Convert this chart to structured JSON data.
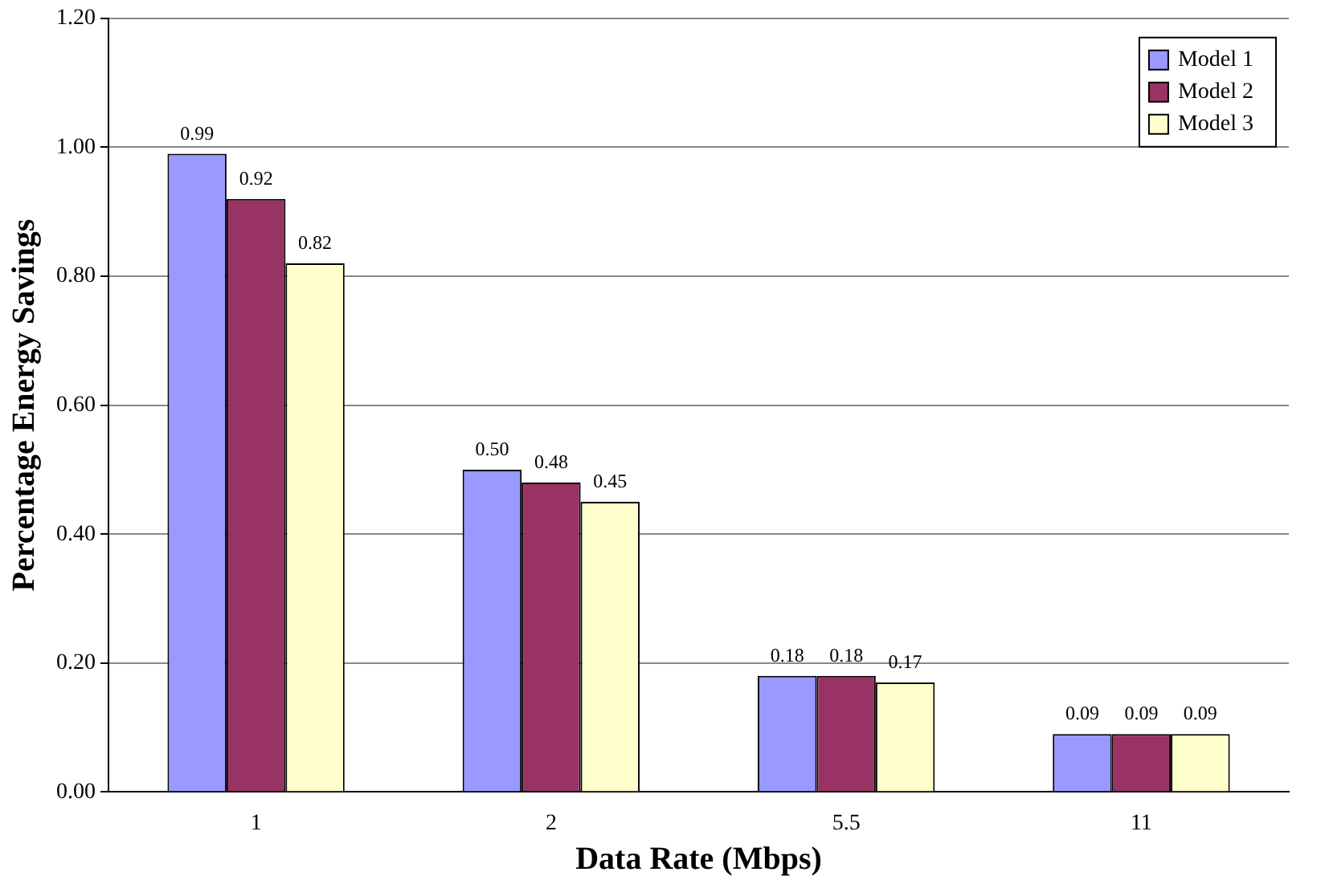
{
  "chart_data": {
    "type": "bar",
    "xlabel": "Data Rate (Mbps)",
    "ylabel": "Percentage Energy Savings",
    "categories": [
      "1",
      "2",
      "5.5",
      "11"
    ],
    "series": [
      {
        "name": "Model 1",
        "color": "#9999ff",
        "values": [
          0.99,
          0.5,
          0.18,
          0.09
        ],
        "value_labels": [
          "0.99",
          "0.50",
          "0.18",
          "0.09"
        ]
      },
      {
        "name": "Model 2",
        "color": "#993366",
        "values": [
          0.92,
          0.48,
          0.18,
          0.09
        ],
        "value_labels": [
          "0.92",
          "0.48",
          "0.18",
          "0.09"
        ]
      },
      {
        "name": "Model 3",
        "color": "#ffffcc",
        "values": [
          0.82,
          0.45,
          0.17,
          0.09
        ],
        "value_labels": [
          "0.82",
          "0.45",
          "0.17",
          "0.09"
        ]
      }
    ],
    "ylim": [
      0,
      1.2
    ],
    "yticks": [
      {
        "value": 0,
        "label": "0.00"
      },
      {
        "value": 0.2,
        "label": "0.20"
      },
      {
        "value": 0.4,
        "label": "0.40"
      },
      {
        "value": 0.6,
        "label": "0.60"
      },
      {
        "value": 0.8,
        "label": "0.80"
      },
      {
        "value": 1.0,
        "label": "1.00"
      },
      {
        "value": 1.2,
        "label": "1.20"
      }
    ],
    "grid": "y",
    "legend": "top right"
  }
}
